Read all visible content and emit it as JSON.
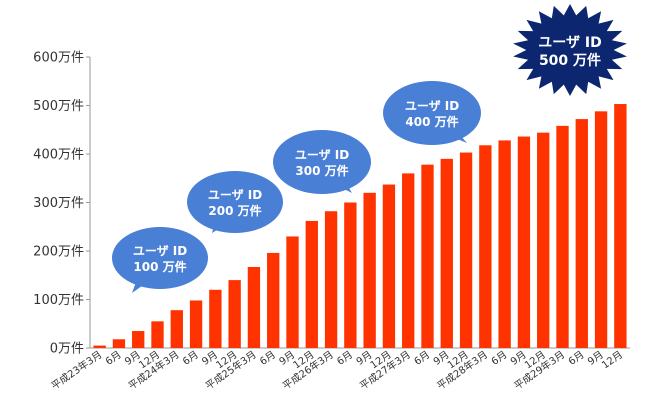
{
  "chart_data": {
    "type": "bar",
    "categories": [
      "平成23年3月",
      "6月",
      "9月",
      "12月",
      "平成24年3月",
      "6月",
      "9月",
      "12月",
      "平成25年3月",
      "6月",
      "9月",
      "12月",
      "平成26年3月",
      "6月",
      "9月",
      "12月",
      "平成27年3月",
      "6月",
      "9月",
      "12月",
      "平成28年3月",
      "6月",
      "9月",
      "12月",
      "平成29年3月",
      "6月",
      "9月",
      "12月"
    ],
    "values": [
      5,
      18,
      35,
      55,
      78,
      98,
      120,
      140,
      167,
      196,
      230,
      262,
      282,
      300,
      320,
      337,
      360,
      378,
      390,
      403,
      418,
      428,
      436,
      444,
      458,
      472,
      488,
      503
    ],
    "ylim": [
      0,
      600
    ],
    "yticks": [
      0,
      100,
      200,
      300,
      400,
      500,
      600
    ],
    "ytick_labels": [
      "0万件",
      "100万件",
      "200万件",
      "300万件",
      "400万件",
      "500万件",
      "600万件"
    ],
    "grid": false,
    "annotations": [
      {
        "line1": "ユーザ ID",
        "line2": "100 万件",
        "style": "bubble"
      },
      {
        "line1": "ユーザ ID",
        "line2": "200 万件",
        "style": "bubble"
      },
      {
        "line1": "ユーザ ID",
        "line2": "300 万件",
        "style": "bubble"
      },
      {
        "line1": "ユーザ ID",
        "line2": "400 万件",
        "style": "bubble"
      },
      {
        "line1": "ユーザ ID",
        "line2": "500 万件",
        "style": "burst"
      }
    ]
  },
  "colors": {
    "bar": "#ff3300",
    "bubble": "#4a7fd6",
    "burst": "#0d2670",
    "axis": "#999999",
    "text": "#333333"
  }
}
